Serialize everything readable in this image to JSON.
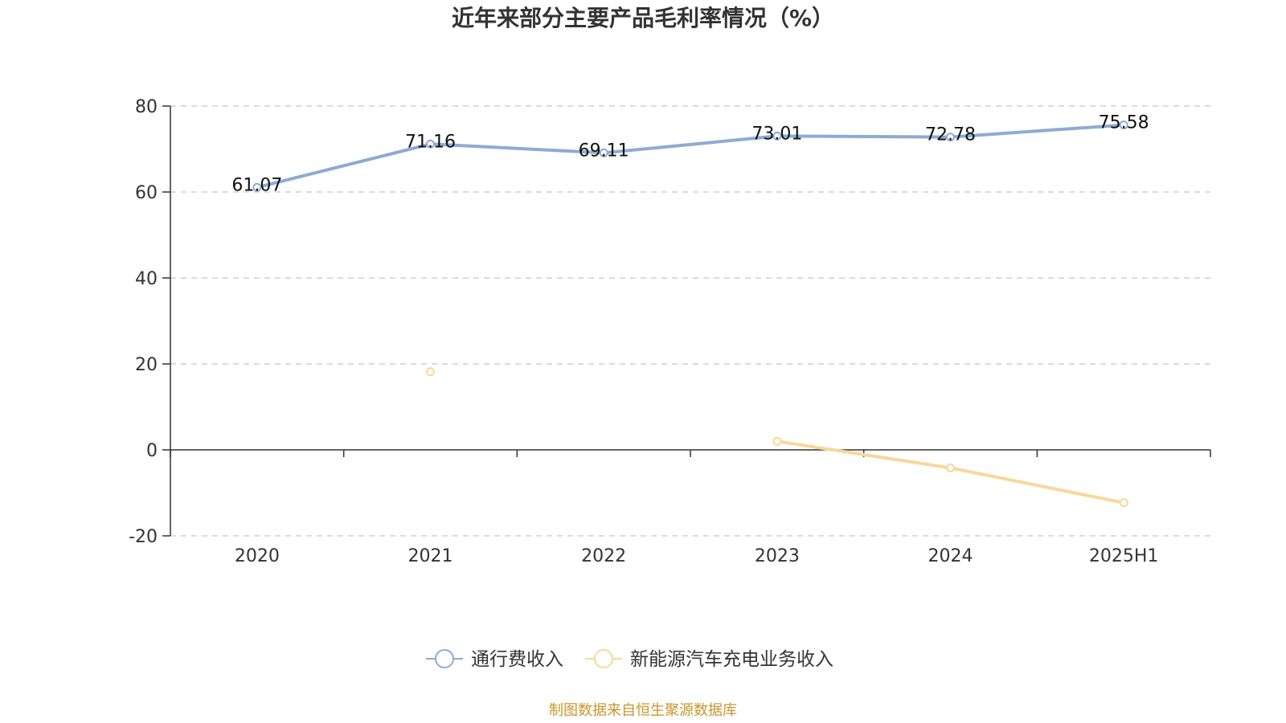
{
  "chart_data": {
    "type": "line",
    "title": "近年来部分主要产品毛利率情况（%）",
    "categories": [
      "2020",
      "2021",
      "2022",
      "2023",
      "2024",
      "2025H1"
    ],
    "ylim": [
      -20,
      80
    ],
    "yticks": [
      -20,
      0,
      20,
      40,
      60,
      80
    ],
    "ytick_labels": [
      "-20",
      "0",
      "20",
      "40",
      "60",
      "80"
    ],
    "grid": true,
    "legend_position": "bottom",
    "series": [
      {
        "name": "通行费收入",
        "color": "#8eaad6",
        "values": [
          61.07,
          71.16,
          69.11,
          73.01,
          72.78,
          75.58
        ],
        "labels": [
          "61.07",
          "71.16",
          "69.11",
          "73.01",
          "72.78",
          "75.58"
        ]
      },
      {
        "name": "新能源汽车充电业务收入",
        "color": "#f9d79b",
        "values": [
          null,
          18.2,
          null,
          2.0,
          -4.2,
          -12.3
        ],
        "labels": [
          "",
          "",
          "",
          "",
          "",
          ""
        ]
      }
    ]
  },
  "source": "制图数据来自恒生聚源数据库"
}
